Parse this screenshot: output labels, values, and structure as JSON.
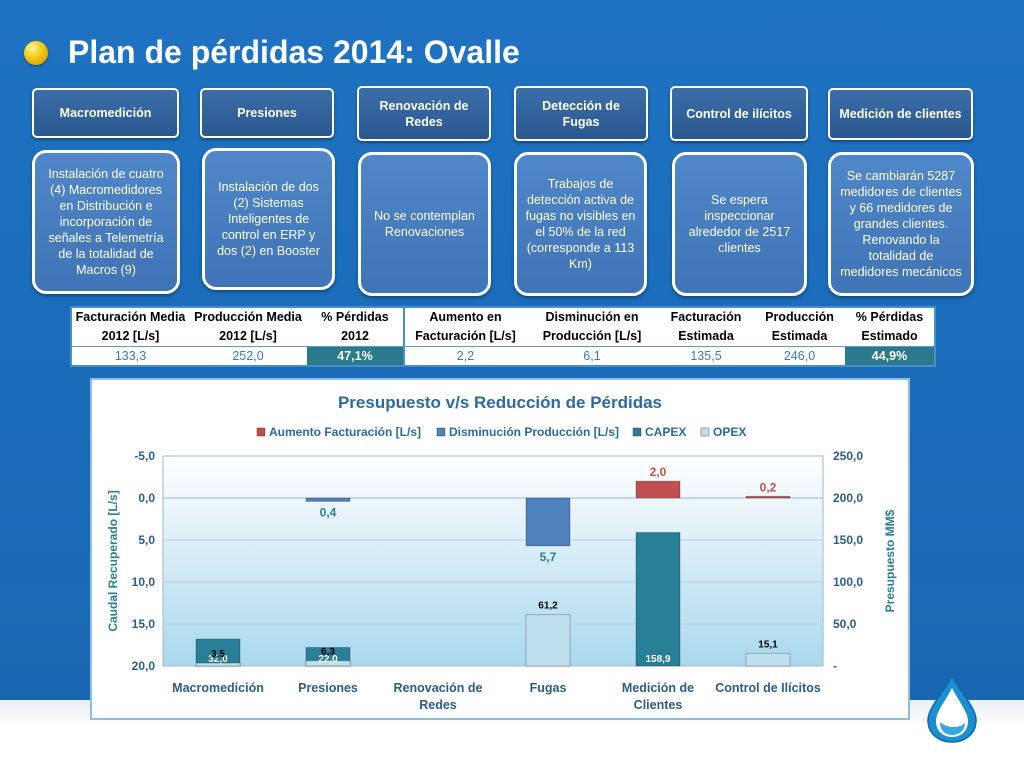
{
  "title": "Plan de pérdidas 2014: Ovalle",
  "categories": [
    {
      "head": "Macromedición",
      "desc": "Instalación de cuatro (4) Macromedidores en Distribución e incorporación de señales a Telemetría de la totalidad de Macros (9)"
    },
    {
      "head": "Presiones",
      "desc": "Instalación de dos (2) Sistemas Inteligentes de control en ERP y dos (2) en Booster"
    },
    {
      "head": "Renovación de Redes",
      "desc": "No se contemplan Renovaciones"
    },
    {
      "head": "Detección de Fugas",
      "desc": "Trabajos de detección activa de fugas no visibles en el 50% de la red (corresponde a 113 Km)"
    },
    {
      "head": "Control de ilícitos",
      "desc": "Se espera inspeccionar alrededor de 2517 clientes"
    },
    {
      "head": "Medición de clientes",
      "desc": "Se cambiarán 5287 medidores de clientes y 66 medidores de grandes clientes. Renovando la totalidad de medidores mecánicos"
    }
  ],
  "table": {
    "headers": [
      [
        "Facturación Media",
        "2012 [L/s]"
      ],
      [
        "Producción Media",
        "2012 [L/s]"
      ],
      [
        "% Pérdidas",
        "2012"
      ],
      [
        "Aumento en",
        "Facturación [L/s]"
      ],
      [
        "Disminución en",
        "Producción [L/s]"
      ],
      [
        "Facturación",
        "Estimada"
      ],
      [
        "Producción",
        "Estimada"
      ],
      [
        "% Pérdidas",
        "Estimado"
      ]
    ],
    "values": [
      "133,3",
      "252,0",
      "47,1%",
      "2,2",
      "6,1",
      "135,5",
      "246,0",
      "44,9%"
    ]
  },
  "chart_data": {
    "type": "bar",
    "title": "Presupuesto v/s Reducción de Pérdidas",
    "categories": [
      "Macromedición",
      "Presiones",
      "Renovación de Redes",
      "Fugas",
      "Medición de Clientes",
      "Control de Ilícitos"
    ],
    "category_labels": [
      [
        "Macromedición"
      ],
      [
        "Presiones"
      ],
      [
        "Renovación de",
        "Redes"
      ],
      [
        "Fugas"
      ],
      [
        "Medición de",
        "Clientes"
      ],
      [
        "Control de Ilícitos"
      ]
    ],
    "ylabel": "Caudal Recuperado [L/s]",
    "y2label": "Presupuesto MM$",
    "ylim": [
      -5,
      20
    ],
    "y_inverted": true,
    "y_ticks": [
      "-5,0",
      "0,0",
      "5,0",
      "10,0",
      "15,0",
      "20,0"
    ],
    "y2lim": [
      0,
      250
    ],
    "y2_ticks": [
      "250,0",
      "200,0",
      "150,0",
      "100,0",
      "50,0",
      "-"
    ],
    "legend_position": "top",
    "series": [
      {
        "name": "Aumento Facturación [L/s]",
        "axis": "left",
        "color": "#c0504d",
        "values": [
          null,
          null,
          null,
          null,
          2.0,
          0.2
        ],
        "labels": [
          null,
          null,
          null,
          null,
          "2,0",
          "0,2"
        ]
      },
      {
        "name": "Disminución Producción [L/s]",
        "axis": "left",
        "color": "#4f81bd",
        "values": [
          null,
          0.4,
          null,
          5.7,
          null,
          null
        ],
        "labels": [
          null,
          "0,4",
          null,
          "5,7",
          null,
          null
        ]
      },
      {
        "name": "CAPEX",
        "axis": "right",
        "color": "#2a7f98",
        "values": [
          32.0,
          22.0,
          null,
          null,
          158.9,
          null
        ],
        "labels": [
          "32,0",
          "22,0",
          null,
          null,
          "158,9",
          null
        ]
      },
      {
        "name": "OPEX",
        "axis": "right",
        "color": "#bfe0ee",
        "values": [
          3.5,
          6.3,
          null,
          61.2,
          null,
          15.1
        ],
        "labels": [
          "3,5",
          "6,3",
          null,
          "61,2",
          null,
          "15,1"
        ]
      }
    ]
  }
}
